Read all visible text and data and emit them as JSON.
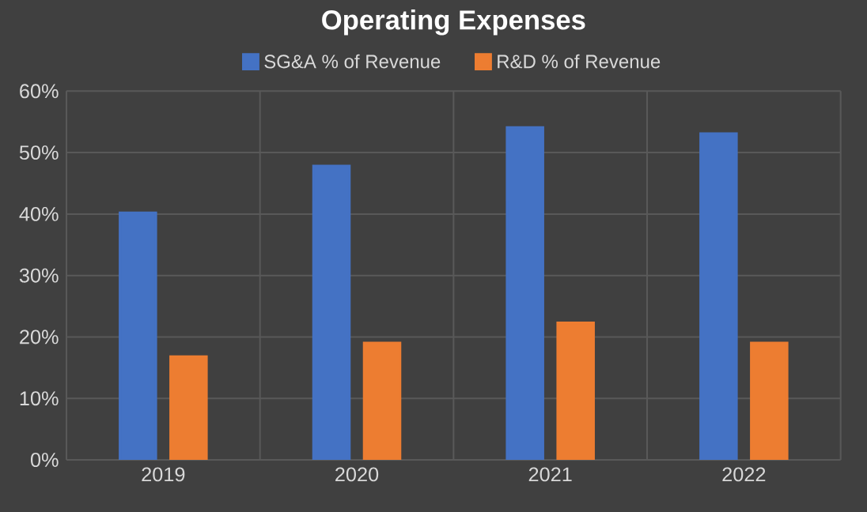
{
  "chart_data": {
    "type": "bar",
    "title": "Operating Expenses",
    "categories": [
      "2019",
      "2020",
      "2021",
      "2022"
    ],
    "series": [
      {
        "name": "SG&A % of Revenue",
        "color": "#4472c4",
        "values": [
          40.2,
          47.8,
          54.1,
          53.1
        ]
      },
      {
        "name": "R&D % of Revenue",
        "color": "#ed7d31",
        "values": [
          16.8,
          19.0,
          22.3,
          19.0
        ]
      }
    ],
    "ylim": [
      0,
      60
    ],
    "yticks": [
      {
        "value": 0,
        "label": "0%"
      },
      {
        "value": 10,
        "label": "10%"
      },
      {
        "value": 20,
        "label": "20%"
      },
      {
        "value": 30,
        "label": "30%"
      },
      {
        "value": 40,
        "label": "40%"
      },
      {
        "value": 50,
        "label": "50%"
      },
      {
        "value": 60,
        "label": "60%"
      }
    ],
    "grid": true,
    "legend": "top"
  }
}
